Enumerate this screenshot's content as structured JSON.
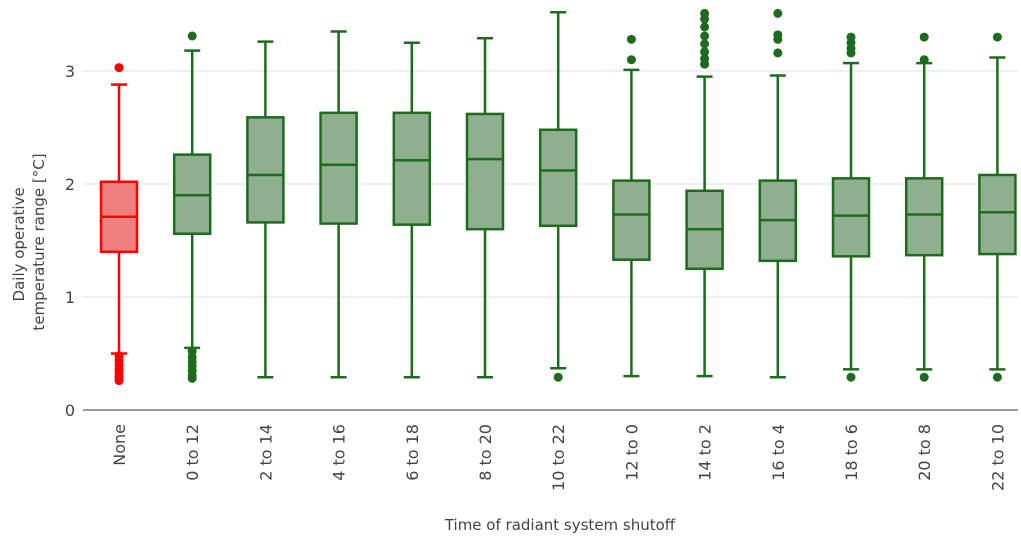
{
  "chart_data": {
    "type": "box",
    "title": "",
    "xlabel": "Time of radiant system shutoff",
    "ylabel": [
      "Daily operative",
      "temperature range [°C]"
    ],
    "ylim": [
      0,
      3.55
    ],
    "yticks": [
      0,
      1,
      2,
      3
    ],
    "grid": true,
    "colors": {
      "baseline_stroke": "#ff0000",
      "baseline_fill": "#f08080",
      "group_stroke": "#1e6b1e",
      "group_fill": "#8fb08f",
      "axis": "#9a9a9a",
      "grid": "#ececec"
    },
    "categories": [
      "None",
      "0 to 12",
      "2 to 14",
      "4 to 16",
      "6 to 18",
      "8 to 20",
      "10 to 22",
      "12 to 0",
      "14 to 2",
      "16 to 4",
      "18 to 6",
      "20 to 8",
      "22 to 10"
    ],
    "boxes": [
      {
        "category": "None",
        "min": 0.5,
        "q1": 1.4,
        "median": 1.71,
        "q3": 2.02,
        "max": 2.88,
        "outliers": [
          3.03,
          0.48,
          0.44,
          0.4,
          0.36,
          0.33,
          0.29,
          0.26
        ],
        "highlight": true
      },
      {
        "category": "0 to 12",
        "min": 0.55,
        "q1": 1.56,
        "median": 1.9,
        "q3": 2.26,
        "max": 3.18,
        "outliers": [
          3.31,
          0.52,
          0.47,
          0.43,
          0.39,
          0.35,
          0.31,
          0.28
        ],
        "highlight": false
      },
      {
        "category": "2 to 14",
        "min": 0.29,
        "q1": 1.66,
        "median": 2.08,
        "q3": 2.59,
        "max": 3.26,
        "outliers": [],
        "highlight": false
      },
      {
        "category": "4 to 16",
        "min": 0.29,
        "q1": 1.65,
        "median": 2.17,
        "q3": 2.63,
        "max": 3.35,
        "outliers": [],
        "highlight": false
      },
      {
        "category": "6 to 18",
        "min": 0.29,
        "q1": 1.64,
        "median": 2.21,
        "q3": 2.63,
        "max": 3.25,
        "outliers": [],
        "highlight": false
      },
      {
        "category": "8 to 20",
        "min": 0.29,
        "q1": 1.6,
        "median": 2.22,
        "q3": 2.62,
        "max": 3.29,
        "outliers": [],
        "highlight": false
      },
      {
        "category": "10 to 22",
        "min": 0.37,
        "q1": 1.63,
        "median": 2.12,
        "q3": 2.48,
        "max": 3.52,
        "outliers": [
          0.29
        ],
        "highlight": false
      },
      {
        "category": "12 to 0",
        "min": 0.3,
        "q1": 1.33,
        "median": 1.73,
        "q3": 2.03,
        "max": 3.01,
        "outliers": [
          3.28,
          3.1
        ],
        "highlight": false
      },
      {
        "category": "14 to 2",
        "min": 0.3,
        "q1": 1.25,
        "median": 1.6,
        "q3": 1.94,
        "max": 2.95,
        "outliers": [
          3.51,
          3.46,
          3.39,
          3.31,
          3.24,
          3.17,
          3.11,
          3.06
        ],
        "highlight": false
      },
      {
        "category": "16 to 4",
        "min": 0.29,
        "q1": 1.32,
        "median": 1.68,
        "q3": 2.03,
        "max": 2.96,
        "outliers": [
          3.51,
          3.32,
          3.28,
          3.16
        ],
        "highlight": false
      },
      {
        "category": "18 to 6",
        "min": 0.36,
        "q1": 1.36,
        "median": 1.72,
        "q3": 2.05,
        "max": 3.07,
        "outliers": [
          3.3,
          3.25,
          3.2,
          3.16,
          0.29
        ],
        "highlight": false
      },
      {
        "category": "20 to 8",
        "min": 0.36,
        "q1": 1.37,
        "median": 1.73,
        "q3": 2.05,
        "max": 3.07,
        "outliers": [
          3.3,
          3.1,
          0.29
        ],
        "highlight": false
      },
      {
        "category": "22 to 10",
        "min": 0.36,
        "q1": 1.38,
        "median": 1.75,
        "q3": 2.08,
        "max": 3.12,
        "outliers": [
          3.3,
          0.29
        ],
        "highlight": false
      }
    ]
  }
}
